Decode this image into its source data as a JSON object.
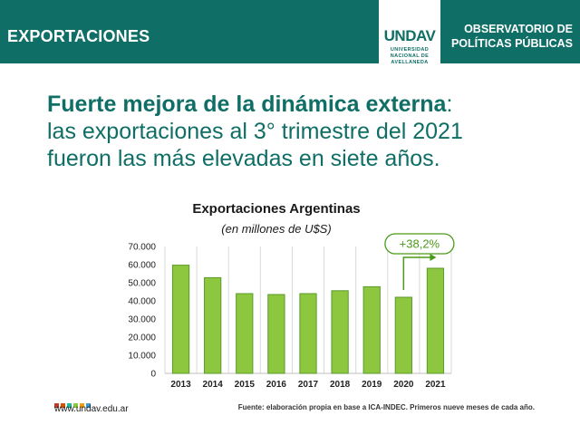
{
  "header": {
    "section": "EXPORTACIONES",
    "logo_text": "UNDAV",
    "logo_lines": [
      "UNIVERSIDAD",
      "NACIONAL DE",
      "AVELLANEDA"
    ],
    "observatorio": [
      "OBSERVATORIO DE",
      "POLÍTICAS PÚBLICAS"
    ],
    "bar_color": "#0f6e66"
  },
  "headline": {
    "bold": "Fuerte mejora de la dinámica externa",
    "colon": ":",
    "line2": "las exportaciones al 3° trimestre del 2021",
    "line3": "fueron las más elevadas en siete años."
  },
  "chart_data": {
    "type": "bar",
    "title": "Exportaciones Argentinas",
    "subtitle": "(en millones de U$S)",
    "categories": [
      "2013",
      "2014",
      "2015",
      "2016",
      "2017",
      "2018",
      "2019",
      "2020",
      "2021"
    ],
    "values": [
      59700,
      52800,
      44000,
      43500,
      44000,
      45600,
      47800,
      42000,
      58000
    ],
    "ylim": [
      0,
      70000
    ],
    "yticks": [
      0,
      10000,
      20000,
      30000,
      40000,
      50000,
      60000,
      70000
    ],
    "ytick_labels": [
      "0",
      "10.000",
      "20.000",
      "30.000",
      "40.000",
      "50.000",
      "60.000",
      "70.000"
    ],
    "grid": "vertical",
    "bar_color": "#8dc63f",
    "bar_edge_color": "#5a9a2a",
    "annotation": {
      "text": "+38,2%",
      "from": "2020",
      "to": "2021",
      "color": "#4a9a1a"
    }
  },
  "footer": {
    "website": "www.undav.edu.ar",
    "source": "Fuente: elaboración propia en base a ICA-INDEC. Primeros nueve meses de cada año.",
    "square_colors": [
      "#c0392b",
      "#d35400",
      "#1abc9c",
      "#8dc63f",
      "#f39c12",
      "#3498db"
    ]
  }
}
